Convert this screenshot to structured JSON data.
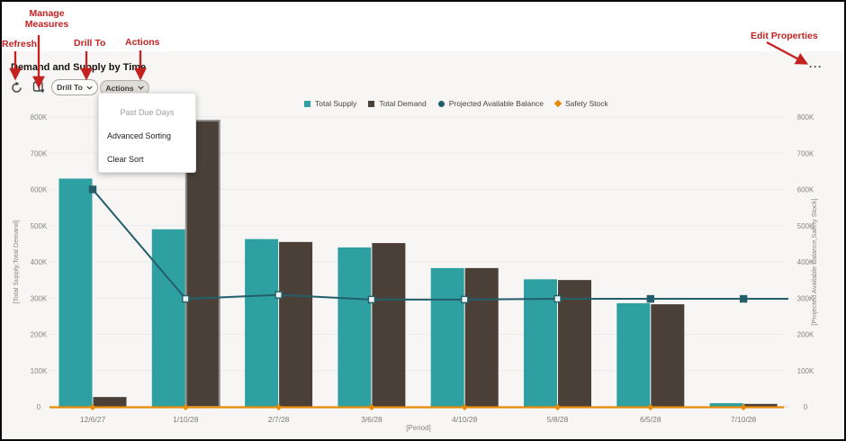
{
  "header_annotations": {
    "color": "#c42121",
    "refresh": "Refresh",
    "manage_measures": "Manage Measures",
    "drill_to": "Drill To",
    "actions": "Actions",
    "edit_properties": "Edit Properties"
  },
  "panel": {
    "title": "Demand and Supply by Time",
    "toolbar": {
      "drill_to_label": "Drill To",
      "actions_label": "Actions"
    },
    "overflow_icon": "···"
  },
  "actions_menu": {
    "items": [
      {
        "label": "Past Due Days",
        "disabled": true
      },
      {
        "label": "Advanced Sorting",
        "disabled": false
      },
      {
        "label": "Clear Sort",
        "disabled": false
      }
    ]
  },
  "chart_data": {
    "type": "combo",
    "title": "Demand and Supply by Time",
    "categories": [
      "12/6/27",
      "1/10/28",
      "2/7/28",
      "3/6/28",
      "4/10/28",
      "5/8/28",
      "6/5/28",
      "7/10/28"
    ],
    "series": [
      {
        "name": "Total Supply",
        "type": "bar",
        "color": "#2fa0a1",
        "values": [
          630000,
          490000,
          463000,
          440000,
          383000,
          352000,
          286000,
          10000
        ]
      },
      {
        "name": "Total Demand",
        "type": "bar",
        "color": "#4a4038",
        "highlighted_index": 1,
        "values": [
          27000,
          790000,
          455000,
          452000,
          383000,
          350000,
          283000,
          8000
        ]
      },
      {
        "name": "Projected Available Balance",
        "type": "line",
        "color": "#235f6b",
        "marker": "square",
        "values": [
          600000,
          298000,
          309000,
          296000,
          296000,
          298000,
          298000,
          298000
        ],
        "filled_markers": [
          true,
          false,
          false,
          false,
          false,
          false,
          true,
          true
        ]
      },
      {
        "name": "Safety Stock",
        "type": "line",
        "color": "#e78b06",
        "marker": "diamond",
        "values": [
          0,
          0,
          0,
          0,
          0,
          0,
          0,
          0
        ]
      }
    ],
    "y_axis_left": {
      "title": "[Total Supply,Total Demand]",
      "min": 0,
      "max": 800000,
      "tick_labels": [
        "0",
        "100K",
        "200K",
        "300K",
        "400K",
        "500K",
        "600K",
        "700K",
        "800K"
      ]
    },
    "y_axis_right": {
      "title": "[Projected Available Balance,Safety Stock]",
      "min": 0,
      "max": 800000,
      "tick_labels": [
        "0",
        "100K",
        "200K",
        "300K",
        "400K",
        "500K",
        "600K",
        "700K",
        "800K"
      ]
    },
    "x_axis": {
      "title": "[Period]"
    },
    "grid": true,
    "legend_position": "top"
  }
}
